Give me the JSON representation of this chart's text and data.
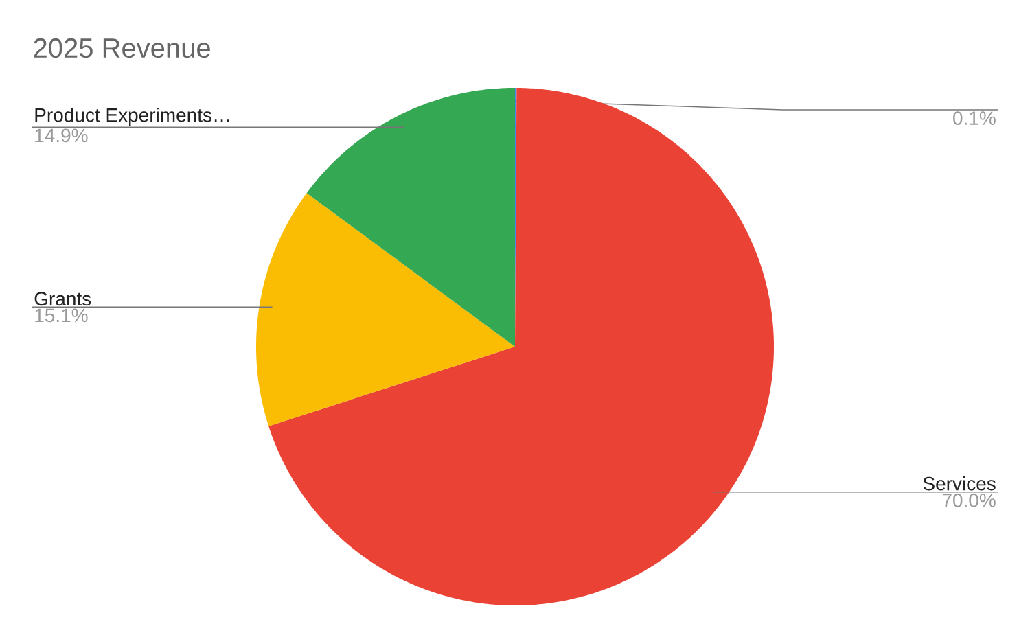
{
  "chart_data": {
    "type": "pie",
    "title": "2025 Revenue",
    "categories": [
      null,
      "Services",
      "Grants",
      "Product Experiments…"
    ],
    "values": [
      0.1,
      70.0,
      15.1,
      14.9
    ],
    "value_labels": [
      "0.1%",
      "70.0%",
      "15.1%",
      "14.9%"
    ],
    "colors": [
      "#4285f4",
      "#ea4335",
      "#fbbc04",
      "#34a853"
    ]
  }
}
